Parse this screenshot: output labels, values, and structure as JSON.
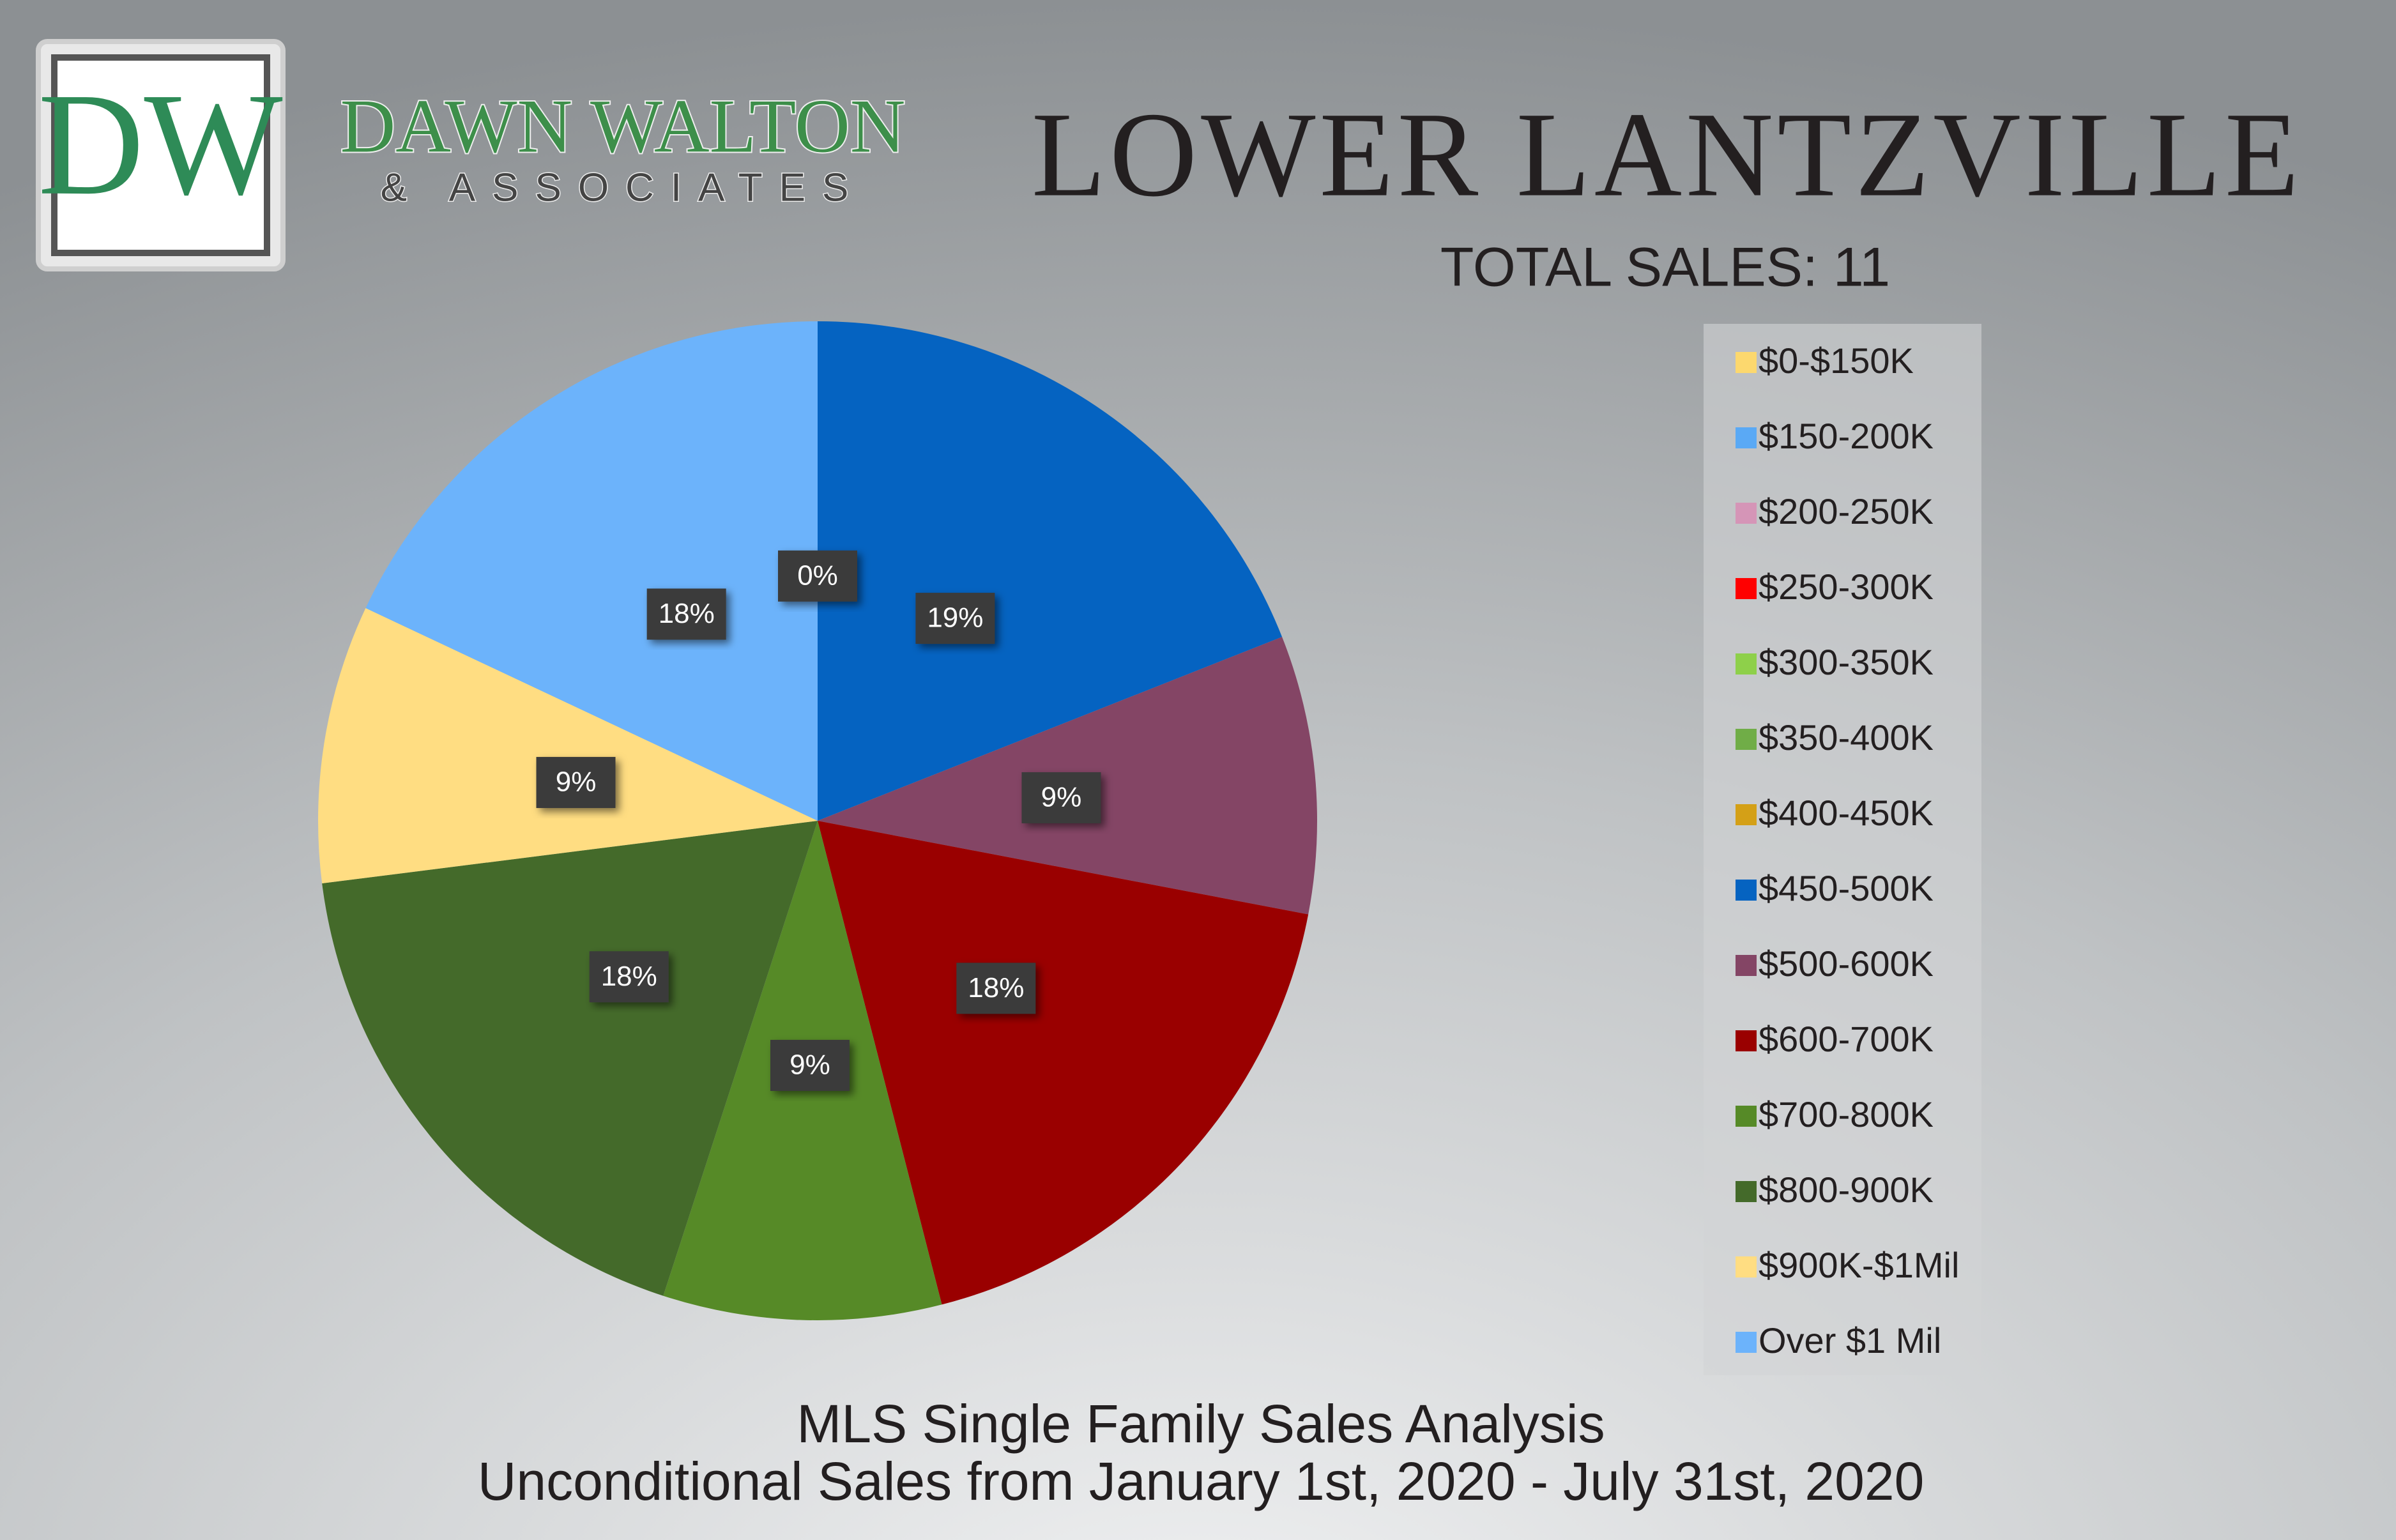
{
  "logo": {
    "initials": "DW",
    "name": "DAWN WALTON",
    "tagline": "& ASSOCIATES"
  },
  "chart_data": {
    "type": "pie",
    "title": "LOWER LANTZVILLE",
    "subtitle": "TOTAL SALES: 11",
    "footer": [
      "MLS Single Family Sales Analysis",
      "Unconditional Sales from January 1st, 2020 - July 31st, 2020"
    ],
    "categories": [
      "$0-$150K",
      "$150-200K",
      "$200-250K",
      "$250-300K",
      "$300-350K",
      "$350-400K",
      "$400-450K",
      "$450-500K",
      "$500-600K",
      "$600-700K",
      "$700-800K",
      "$800-900K",
      "$900K-$1Mil",
      "Over $1 Mil"
    ],
    "values": [
      0,
      0,
      0,
      0,
      0,
      0,
      0,
      19,
      9,
      18,
      9,
      18,
      9,
      18
    ],
    "value_labels": [
      null,
      null,
      null,
      null,
      null,
      null,
      "0%",
      "19%",
      "9%",
      "18%",
      "9%",
      "18%",
      "9%",
      "18%"
    ],
    "colors": [
      "#fcd86e",
      "#5aa9f5",
      "#d595b7",
      "#ff0000",
      "#8ed04a",
      "#70ad47",
      "#d4a017",
      "#0563c1",
      "#844565",
      "#9a0000",
      "#568a27",
      "#446a2a",
      "#ffdd82",
      "#6cb3fb"
    ],
    "legend": "right"
  }
}
